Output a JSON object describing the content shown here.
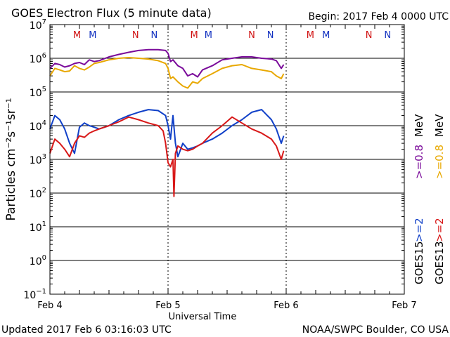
{
  "chart_data": {
    "type": "line",
    "title": "GOES Electron Flux (5 minute data)",
    "begin_label": "Begin: 2017 Feb 4 0000 UTC",
    "xlabel": "Universal Time",
    "ylabel": "Particles cm⁻²s⁻¹sr⁻¹",
    "x_ticks": [
      "Feb 4",
      "Feb 5",
      "Feb 6",
      "Feb 7"
    ],
    "xlim_hours": [
      0,
      72
    ],
    "y_scale": "log",
    "ylim": [
      0.1,
      10000000
    ],
    "y_ticks": [
      {
        "base": "10",
        "exp": "7"
      },
      {
        "base": "10",
        "exp": "6"
      },
      {
        "base": "10",
        "exp": "5"
      },
      {
        "base": "10",
        "exp": "4"
      },
      {
        "base": "10",
        "exp": "3"
      },
      {
        "base": "10",
        "exp": "2"
      },
      {
        "base": "10",
        "exp": "1"
      },
      {
        "base": "10",
        "exp": "0"
      },
      {
        "base": "10",
        "exp": "−1"
      }
    ],
    "dashed_threshold": 1000,
    "markers": [
      {
        "label": "M",
        "hour": 5.5,
        "color": "#d01010"
      },
      {
        "label": "M",
        "hour": 8.7,
        "color": "#1030c0"
      },
      {
        "label": "N",
        "hour": 17.4,
        "color": "#d01010"
      },
      {
        "label": "N",
        "hour": 21.2,
        "color": "#1030c0"
      },
      {
        "label": "M",
        "hour": 29.3,
        "color": "#d01010"
      },
      {
        "label": "M",
        "hour": 32.2,
        "color": "#1030c0"
      },
      {
        "label": "N",
        "hour": 41.0,
        "color": "#d01010"
      },
      {
        "label": "N",
        "hour": 44.8,
        "color": "#1030c0"
      },
      {
        "label": "M",
        "hour": 52.9,
        "color": "#d01010"
      },
      {
        "label": "M",
        "hour": 56.1,
        "color": "#1030c0"
      },
      {
        "label": "N",
        "hour": 64.8,
        "color": "#d01010"
      },
      {
        "label": "N",
        "hour": 68.6,
        "color": "#1030c0"
      }
    ],
    "right_labels": {
      "col1_header": "GOES15",
      "col2_header": "GOES13",
      "col1_low": ">=2",
      "col1_high": ">=0.8",
      "col2_low": ">=2",
      "col2_high": ">=0.8",
      "unit": "MeV"
    },
    "series": [
      {
        "name": ">=0.8 MeV",
        "satellite": "GOES15",
        "color": "#7a0a9a",
        "x": [
          0,
          1,
          2,
          3,
          4,
          5,
          6,
          7,
          8,
          9,
          10,
          12,
          14,
          16,
          18,
          20,
          22,
          23.5,
          24,
          24.5,
          25,
          26,
          27,
          28,
          29,
          30,
          31,
          33,
          35,
          37,
          39,
          41,
          43,
          45,
          46,
          47,
          47.5
        ],
        "y": [
          500000,
          700000,
          650000,
          550000,
          600000,
          700000,
          750000,
          650000,
          900000,
          800000,
          850000,
          1100000,
          1300000,
          1500000,
          1700000,
          1800000,
          1800000,
          1700000,
          1400000,
          800000,
          900000,
          600000,
          500000,
          300000,
          350000,
          280000,
          450000,
          600000,
          900000,
          1000000,
          1100000,
          1100000,
          1000000,
          950000,
          850000,
          500000,
          650000
        ]
      },
      {
        "name": ">=0.8 MeV",
        "satellite": "GOES13",
        "color": "#e8a800",
        "x": [
          0,
          1,
          2,
          3,
          4,
          5,
          6,
          7,
          8,
          9,
          10,
          12,
          14,
          16,
          18,
          20,
          22,
          23.5,
          24,
          24.5,
          25,
          26,
          27,
          28,
          29,
          30,
          31,
          33,
          35,
          37,
          39,
          41,
          43,
          45,
          46,
          47,
          47.5
        ],
        "y": [
          300000,
          500000,
          450000,
          400000,
          420000,
          600000,
          500000,
          450000,
          550000,
          700000,
          750000,
          900000,
          1000000,
          1050000,
          1000000,
          950000,
          850000,
          700000,
          500000,
          250000,
          280000,
          200000,
          150000,
          130000,
          200000,
          180000,
          250000,
          350000,
          500000,
          600000,
          650000,
          500000,
          450000,
          400000,
          300000,
          250000,
          350000
        ]
      },
      {
        "name": ">=2 MeV",
        "satellite": "GOES15",
        "color": "#1040c8",
        "x": [
          0,
          1,
          2,
          3,
          4,
          5,
          6,
          7,
          8,
          9,
          10,
          12,
          14,
          16,
          18,
          20,
          22,
          23.5,
          24,
          24.5,
          25,
          25.5,
          26,
          27,
          28,
          29,
          30,
          31,
          33,
          35,
          37,
          39,
          41,
          43,
          45,
          46,
          47,
          47.5
        ],
        "y": [
          8000,
          20000,
          15000,
          8000,
          3000,
          1500,
          9000,
          12000,
          10000,
          9000,
          8000,
          10000,
          15000,
          20000,
          25000,
          30000,
          28000,
          20000,
          10000,
          4000,
          20000,
          3000,
          1200,
          3000,
          2000,
          2200,
          2500,
          3000,
          4000,
          6000,
          10000,
          15000,
          25000,
          30000,
          15000,
          8000,
          3000,
          5000
        ]
      },
      {
        "name": ">=2 MeV",
        "satellite": "GOES13",
        "color": "#d81818",
        "x": [
          0,
          1,
          2,
          3,
          4,
          5,
          6,
          7,
          8,
          9,
          10,
          12,
          14,
          16,
          18,
          20,
          22,
          23,
          23.5,
          24,
          24.5,
          25,
          25.2,
          25.5,
          26,
          27,
          28,
          29,
          30,
          31,
          33,
          35,
          37,
          39,
          41,
          43,
          45,
          46,
          47,
          47.5
        ],
        "y": [
          1500,
          4000,
          3000,
          2000,
          1200,
          3000,
          5000,
          4500,
          6000,
          7000,
          8000,
          10000,
          13000,
          18000,
          15000,
          12000,
          10000,
          7000,
          3000,
          800,
          600,
          1000,
          80,
          1500,
          2500,
          2000,
          1800,
          2000,
          2500,
          3000,
          6000,
          10000,
          18000,
          12000,
          8000,
          6000,
          4000,
          2500,
          1000,
          1800
        ]
      }
    ]
  },
  "footer": {
    "updated": "Updated 2017 Feb  6 03:16:03 UTC",
    "credit": "NOAA/SWPC Boulder, CO USA"
  }
}
